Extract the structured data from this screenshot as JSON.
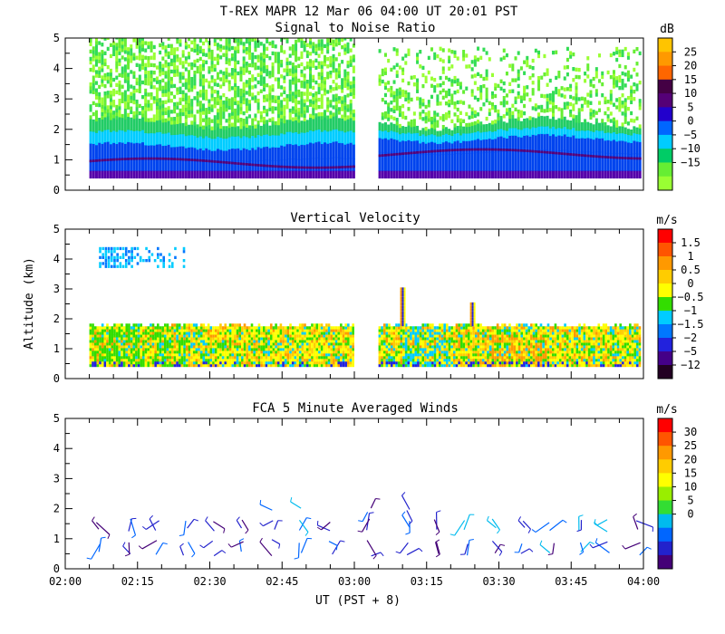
{
  "header": {
    "title": "T-REX   MAPR 12 Mar 06   04:00 UT   20:01   PST"
  },
  "chart_data": [
    {
      "type": "heatmap",
      "title": "Signal to Noise Ratio",
      "xlabel": "",
      "ylabel": "",
      "xlim": [
        0,
        120
      ],
      "ylim": [
        0,
        5
      ],
      "yticks": [
        "0",
        "1",
        "2",
        "3",
        "4",
        "5"
      ],
      "colorbar_unit": "dB",
      "colorbar_labels": [
        "25",
        "20",
        "15",
        "10",
        "5",
        "0",
        "−5",
        "−10",
        "−15"
      ],
      "colorbar_colors": [
        "#ffc400",
        "#ff9900",
        "#ff6600",
        "#440044",
        "#550077",
        "#2200cc",
        "#0066ff",
        "#00ccff",
        "#00cc66",
        "#66ee33",
        "#99ff33"
      ],
      "data_gap_minutes": [
        60,
        65
      ],
      "layers": [
        {
          "name": "-5 dB",
          "top_km": 1.5,
          "color": "#0044ee"
        },
        {
          "name": "-10 dB",
          "top_km": 1.9,
          "color": "#00ccff"
        },
        {
          "name": "-15 dB",
          "top_km": 2.2,
          "color": "#22cc66"
        }
      ]
    },
    {
      "type": "heatmap",
      "title": "Vertical Velocity",
      "xlabel": "",
      "ylabel": "Altitude (km)",
      "xlim": [
        0,
        120
      ],
      "ylim": [
        0,
        5
      ],
      "yticks": [
        "0",
        "1",
        "2",
        "3",
        "4",
        "5"
      ],
      "colorbar_unit": "m/s",
      "colorbar_labels": [
        "1.5",
        "1",
        "0.5",
        "0",
        "−0.5",
        "−1",
        "−1.5",
        "−2",
        "−5",
        "−12"
      ],
      "colorbar_colors": [
        "#ff0000",
        "#ff5500",
        "#ff9900",
        "#ffcc00",
        "#ffff00",
        "#33dd00",
        "#00ccff",
        "#0077ff",
        "#2222dd",
        "#440088",
        "#220022"
      ],
      "data_gap_minutes": [
        60,
        65
      ],
      "echo_top_km": 1.75
    },
    {
      "type": "scatter",
      "title": "FCA 5 Minute Averaged Winds",
      "xlabel": "UT  (PST + 8)",
      "ylabel": "",
      "xlim": [
        0,
        120
      ],
      "ylim": [
        0,
        5
      ],
      "xticks": [
        "02:00",
        "02:15",
        "02:30",
        "02:45",
        "03:00",
        "03:15",
        "03:30",
        "03:45",
        "04:00"
      ],
      "yticks": [
        "0",
        "1",
        "2",
        "3",
        "4",
        "5"
      ],
      "colorbar_unit": "m/s",
      "colorbar_labels": [
        "30",
        "25",
        "20",
        "15",
        "10",
        "5",
        "0"
      ],
      "colorbar_colors": [
        "#ff0000",
        "#ff5500",
        "#ff9900",
        "#ffcc00",
        "#ffff00",
        "#99ee00",
        "#33dd33",
        "#00bbee",
        "#0066ff",
        "#2222cc",
        "#440077"
      ],
      "wind_heights_km": [
        0.5,
        0.9,
        1.3,
        1.6,
        2.0
      ],
      "wind_times_minutes": [
        7,
        13,
        19,
        25,
        31,
        37,
        43,
        49,
        55,
        63,
        71,
        77,
        83,
        89,
        95,
        101,
        107,
        113,
        119
      ]
    }
  ]
}
